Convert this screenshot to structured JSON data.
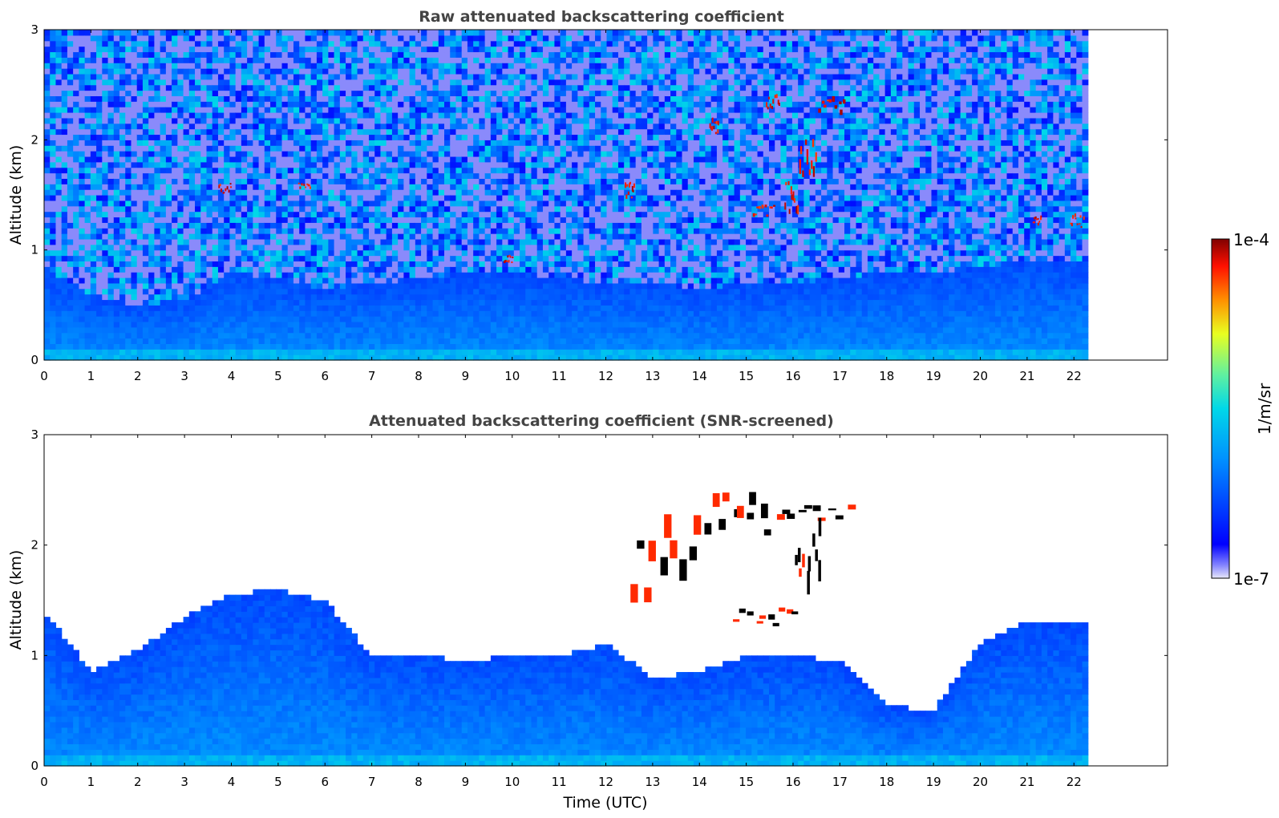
{
  "chart_data": [
    {
      "type": "heatmap",
      "title": "Raw attenuated backscattering coefficient",
      "xlabel": "",
      "ylabel": "Altitude (km)",
      "xlim": [
        0,
        24
      ],
      "ylim": [
        0,
        3
      ],
      "x_ticks": [
        "0",
        "1",
        "2",
        "3",
        "4",
        "5",
        "6",
        "7",
        "8",
        "9",
        "10",
        "11",
        "12",
        "13",
        "14",
        "15",
        "16",
        "17",
        "18",
        "19",
        "20",
        "21",
        "22"
      ],
      "y_ticks": [
        "0",
        "1",
        "2",
        "3"
      ],
      "data_end_time": 22.3,
      "description_values": {
        "boundary_layer_top_km": [
          0.85,
          0.6,
          0.5,
          0.55,
          0.8,
          0.75,
          0.65,
          0.7,
          0.75,
          0.8,
          0.8,
          0.75,
          0.7,
          0.7,
          0.65,
          0.7,
          0.7,
          0.75,
          0.8,
          0.8,
          0.85,
          0.9,
          0.9
        ],
        "cloud_patches": [
          {
            "t": [
              3.7,
              4.0
            ],
            "z": [
              1.5,
              1.6
            ]
          },
          {
            "t": [
              5.4,
              5.7
            ],
            "z": [
              1.55,
              1.62
            ]
          },
          {
            "t": [
              9.8,
              10.0
            ],
            "z": [
              0.88,
              0.95
            ]
          },
          {
            "t": [
              12.4,
              12.6
            ],
            "z": [
              1.45,
              1.6
            ]
          },
          {
            "t": [
              14.2,
              14.4
            ],
            "z": [
              2.05,
              2.2
            ]
          },
          {
            "t": [
              15.4,
              15.7
            ],
            "z": [
              2.25,
              2.4
            ]
          },
          {
            "t": [
              16.5,
              17.1
            ],
            "z": [
              2.2,
              2.35
            ]
          },
          {
            "t": [
              15.1,
              15.6
            ],
            "z": [
              1.3,
              1.4
            ]
          },
          {
            "t": [
              15.8,
              16.1
            ],
            "z": [
              1.3,
              1.6
            ]
          },
          {
            "t": [
              16.1,
              16.5
            ],
            "z": [
              1.6,
              2.0
            ]
          },
          {
            "t": [
              21.1,
              21.3
            ],
            "z": [
              1.22,
              1.3
            ]
          },
          {
            "t": [
              21.9,
              22.2
            ],
            "z": [
              1.2,
              1.3
            ]
          }
        ]
      }
    },
    {
      "type": "heatmap",
      "title": "Attenuated backscattering coefficient (SNR-screened)",
      "xlabel": "Time (UTC)",
      "ylabel": "Altitude (km)",
      "xlim": [
        0,
        24
      ],
      "ylim": [
        0,
        3
      ],
      "x_ticks": [
        "0",
        "1",
        "2",
        "3",
        "4",
        "5",
        "6",
        "7",
        "8",
        "9",
        "10",
        "11",
        "12",
        "13",
        "14",
        "15",
        "16",
        "17",
        "18",
        "19",
        "20",
        "21",
        "22"
      ],
      "y_ticks": [
        "0",
        "1",
        "2",
        "3"
      ],
      "data_end_time": 22.3,
      "description_values": {
        "screened_signal_top_km": [
          1.4,
          0.85,
          1.05,
          1.35,
          1.55,
          1.6,
          1.5,
          1.0,
          1.0,
          0.95,
          1.0,
          1.0,
          1.1,
          0.8,
          0.85,
          1.0,
          1.0,
          0.95,
          0.55,
          0.5,
          1.1,
          1.3,
          1.3
        ],
        "cloud_layers": [
          {
            "t": [
              12.4,
              14.0
            ],
            "z": [
              1.45,
              2.1
            ]
          },
          {
            "t": [
              14.0,
              15.5
            ],
            "z": [
              2.0,
              2.4
            ]
          },
          {
            "t": [
              15.5,
              17.2
            ],
            "z": [
              2.2,
              2.35
            ]
          },
          {
            "t": [
              14.7,
              16.1
            ],
            "z": [
              1.25,
              1.4
            ]
          },
          {
            "t": [
              16.0,
              16.6
            ],
            "z": [
              1.4,
              2.1
            ]
          }
        ]
      }
    }
  ],
  "colorbar": {
    "label": "1/m/sr",
    "max_label": "1e-4",
    "min_label": "1e-7",
    "colormap": [
      "#e6e6f8",
      "#0000ff",
      "#00a0ff",
      "#00e0e0",
      "#80ff80",
      "#ffff00",
      "#ff8000",
      "#ff0000",
      "#800000"
    ]
  }
}
